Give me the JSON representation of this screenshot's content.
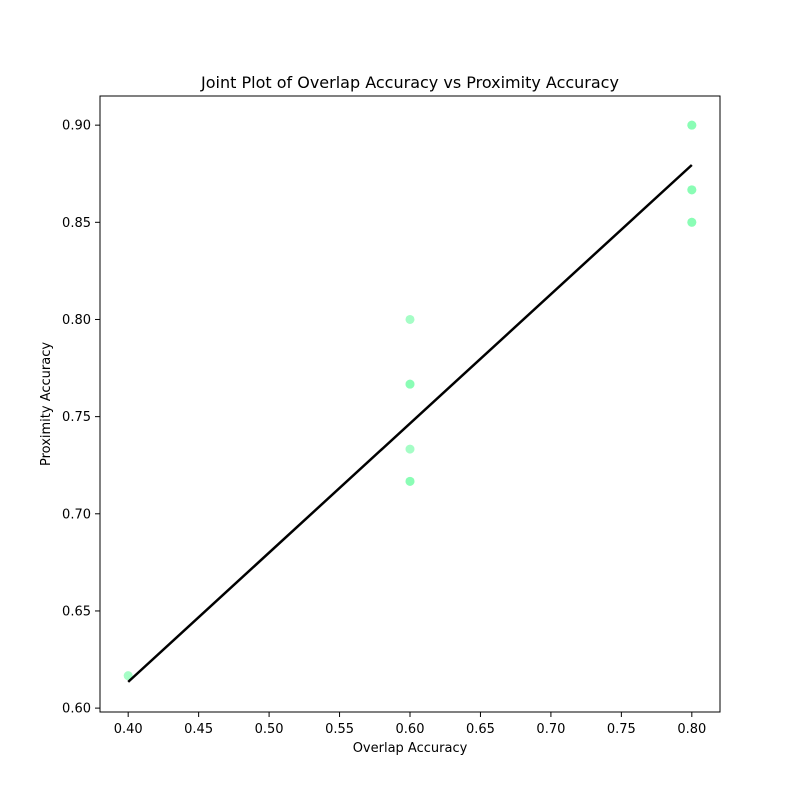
{
  "chart_data": {
    "type": "scatter",
    "title": "Joint Plot of Overlap Accuracy vs Proximity Accuracy",
    "xlabel": "Overlap Accuracy",
    "ylabel": "Proximity Accuracy",
    "xlim": [
      0.38,
      0.82
    ],
    "ylim": [
      0.598,
      0.915
    ],
    "xticks": [
      "0.40",
      "0.45",
      "0.50",
      "0.55",
      "0.60",
      "0.65",
      "0.70",
      "0.75",
      "0.80"
    ],
    "yticks": [
      "0.60",
      "0.65",
      "0.70",
      "0.75",
      "0.80",
      "0.85",
      "0.90"
    ],
    "grid": false,
    "series": [
      {
        "color": "#7ffcae",
        "points": [
          {
            "x": 0.4,
            "y": 0.6167
          },
          {
            "x": 0.6,
            "y": 0.8
          },
          {
            "x": 0.6,
            "y": 0.7667
          },
          {
            "x": 0.6,
            "y": 0.7667
          },
          {
            "x": 0.6,
            "y": 0.7333
          },
          {
            "x": 0.6,
            "y": 0.7167
          },
          {
            "x": 0.6,
            "y": 0.7167
          },
          {
            "x": 0.8,
            "y": 0.9
          },
          {
            "x": 0.8,
            "y": 0.9
          },
          {
            "x": 0.8,
            "y": 0.8667
          },
          {
            "x": 0.8,
            "y": 0.8667
          },
          {
            "x": 0.8,
            "y": 0.85
          },
          {
            "x": 0.8,
            "y": 0.85
          }
        ]
      }
    ],
    "regression_line": {
      "color": "#000000",
      "x": [
        0.4,
        0.8
      ],
      "y": [
        0.6135,
        0.8795
      ]
    }
  }
}
